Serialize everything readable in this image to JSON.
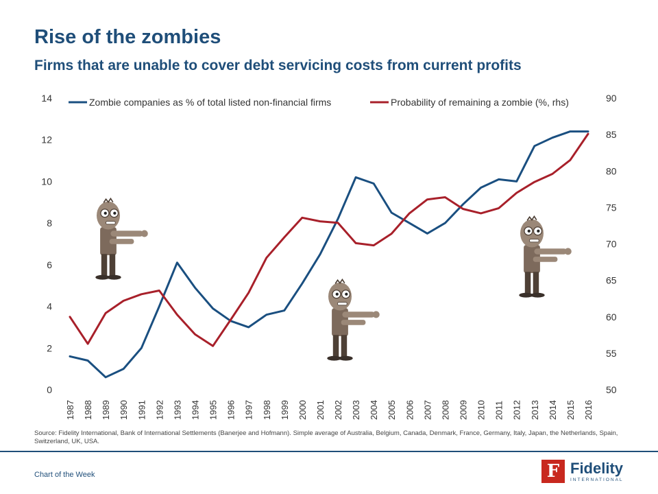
{
  "header": {
    "title": "Rise of the zombies",
    "subtitle": "Firms that are unable to cover debt servicing costs from current profits"
  },
  "chart_data": {
    "type": "line",
    "categories": [
      "1987",
      "1988",
      "1989",
      "1990",
      "1991",
      "1992",
      "1993",
      "1994",
      "1995",
      "1996",
      "1997",
      "1998",
      "1999",
      "2000",
      "2001",
      "2002",
      "2003",
      "2004",
      "2005",
      "2006",
      "2007",
      "2008",
      "2009",
      "2010",
      "2011",
      "2012",
      "2013",
      "2014",
      "2015",
      "2016"
    ],
    "series": [
      {
        "name": "Zombie companies as % of total listed non-financial firms",
        "axis": "left",
        "color": "#1a4f80",
        "values": [
          1.6,
          1.4,
          0.6,
          1.0,
          2.0,
          4.0,
          6.1,
          4.9,
          3.9,
          3.3,
          3.0,
          3.6,
          3.8,
          5.1,
          6.5,
          8.2,
          10.2,
          9.9,
          8.5,
          8.0,
          7.5,
          8.0,
          8.9,
          9.7,
          10.1,
          10.0,
          11.7,
          12.1,
          12.4,
          12.4
        ]
      },
      {
        "name": "Probability of remaining a zombie (%, rhs)",
        "axis": "right",
        "color": "#a8202a",
        "values": [
          60,
          56.3,
          60.5,
          62.2,
          63.1,
          63.6,
          60.3,
          57.6,
          56,
          59.6,
          63.3,
          68.1,
          70.9,
          73.6,
          73.1,
          72.9,
          70.1,
          69.8,
          71.4,
          74.2,
          76.1,
          76.4,
          74.8,
          74.2,
          74.9,
          77,
          78.5,
          79.6,
          81.5,
          85.1
        ]
      }
    ],
    "y_left": {
      "min": 0,
      "max": 14,
      "ticks": [
        0,
        2,
        4,
        6,
        8,
        10,
        12,
        14
      ]
    },
    "y_right": {
      "min": 50,
      "max": 90,
      "ticks": [
        50,
        55,
        60,
        65,
        70,
        75,
        80,
        85,
        90
      ]
    },
    "legend_position": "top",
    "grid": false
  },
  "footer": {
    "source": "Source: Fidelity International, Bank of International Settlements (Banerjee and Hofmann). Simple average of Australia, Belgium, Canada, Denmark, France, Germany, Italy, Japan, the Netherlands, Spain, Switzerland, UK, USA.",
    "label": "Chart of the Week",
    "logo_name": "Fidelity",
    "logo_sub": "INTERNATIONAL",
    "logo_mark": "F"
  }
}
